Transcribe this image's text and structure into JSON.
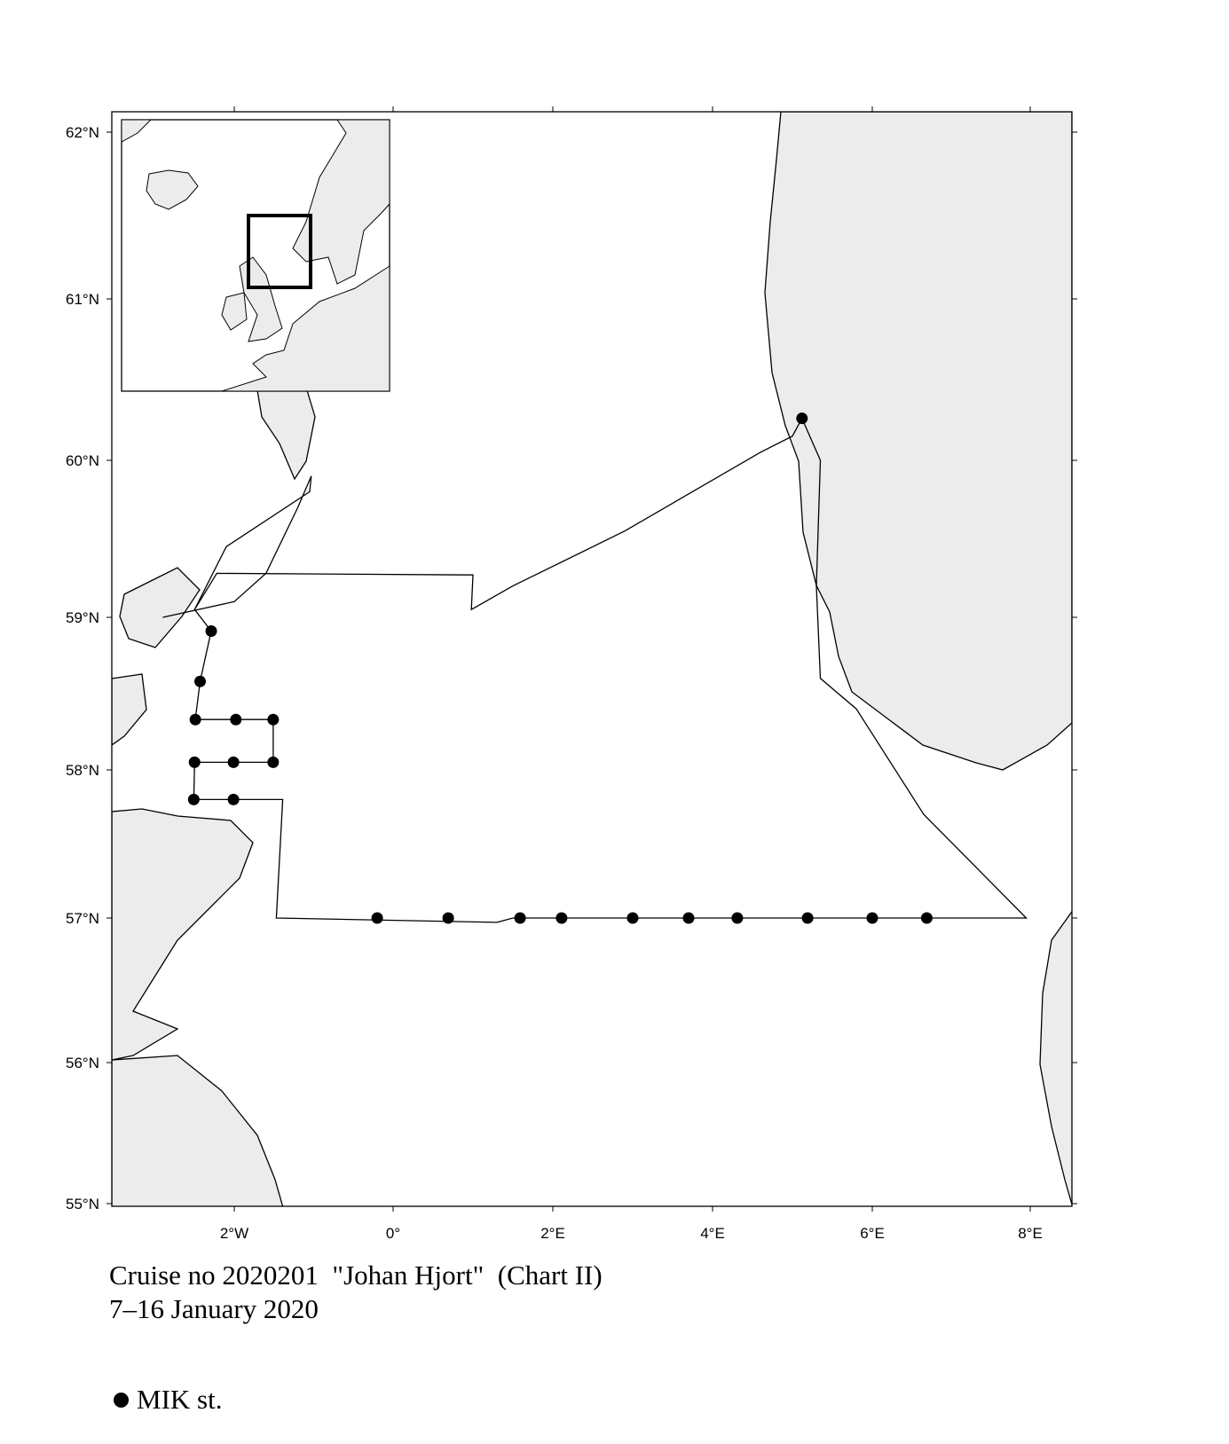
{
  "map": {
    "lat_ticks": [
      "62°N",
      "61°N",
      "60°N",
      "59°N",
      "58°N",
      "57°N",
      "56°N",
      "55°N"
    ],
    "lon_ticks": [
      "2°W",
      "0°",
      "2°E",
      "4°E",
      "6°E",
      "8°E"
    ],
    "land_color": "#ececec",
    "stations": [
      {
        "lon": 5.12,
        "lat": 60.26
      },
      {
        "lon": -2.29,
        "lat": 58.91
      },
      {
        "lon": -2.43,
        "lat": 58.58
      },
      {
        "lon": -2.49,
        "lat": 58.33
      },
      {
        "lon": -1.98,
        "lat": 58.33
      },
      {
        "lon": -1.51,
        "lat": 58.33
      },
      {
        "lon": -2.5,
        "lat": 58.05
      },
      {
        "lon": -2.01,
        "lat": 58.05
      },
      {
        "lon": -1.51,
        "lat": 58.05
      },
      {
        "lon": -2.51,
        "lat": 57.8
      },
      {
        "lon": -2.01,
        "lat": 57.8
      },
      {
        "lon": -0.2,
        "lat": 57.0
      },
      {
        "lon": 0.69,
        "lat": 57.0
      },
      {
        "lon": 1.59,
        "lat": 57.0
      },
      {
        "lon": 2.11,
        "lat": 57.0
      },
      {
        "lon": 3.0,
        "lat": 57.0
      },
      {
        "lon": 3.7,
        "lat": 57.0
      },
      {
        "lon": 4.31,
        "lat": 57.0
      },
      {
        "lon": 5.19,
        "lat": 57.0
      },
      {
        "lon": 6.0,
        "lat": 57.0
      },
      {
        "lon": 6.69,
        "lat": 57.0
      }
    ],
    "track": [
      [
        5.12,
        60.26
      ],
      [
        5.0,
        60.15
      ],
      [
        4.6,
        60.05
      ],
      [
        2.9,
        59.55
      ],
      [
        1.5,
        59.2
      ],
      [
        0.98,
        59.05
      ],
      [
        1.0,
        59.27
      ],
      [
        -2.22,
        59.28
      ],
      [
        -2.5,
        59.05
      ],
      [
        -2.29,
        58.91
      ],
      [
        -2.43,
        58.58
      ],
      [
        -2.49,
        58.33
      ],
      [
        -1.51,
        58.33
      ],
      [
        -1.51,
        58.05
      ],
      [
        -2.5,
        58.05
      ],
      [
        -2.51,
        57.8
      ],
      [
        -1.39,
        57.8
      ],
      [
        -1.47,
        57.0
      ],
      [
        1.3,
        56.97
      ],
      [
        1.5,
        57.0
      ],
      [
        7.95,
        57.0
      ],
      [
        6.65,
        57.7
      ],
      [
        5.8,
        58.4
      ],
      [
        5.35,
        58.6
      ],
      [
        5.3,
        59.2
      ],
      [
        5.35,
        60.0
      ],
      [
        5.12,
        60.26
      ]
    ],
    "track_loop": [
      [
        -2.5,
        59.05
      ],
      [
        -2.1,
        59.45
      ],
      [
        -1.05,
        59.8
      ],
      [
        -1.03,
        59.9
      ],
      [
        -1.2,
        59.7
      ],
      [
        -1.6,
        59.28
      ],
      [
        -2.0,
        59.1
      ],
      [
        -2.9,
        59.0
      ]
    ]
  },
  "caption": {
    "line1": "Cruise no 2020201  \"Johan Hjort\"  (Chart II)",
    "line2": "7–16 January 2020"
  },
  "legend": {
    "label": "MIK st."
  }
}
